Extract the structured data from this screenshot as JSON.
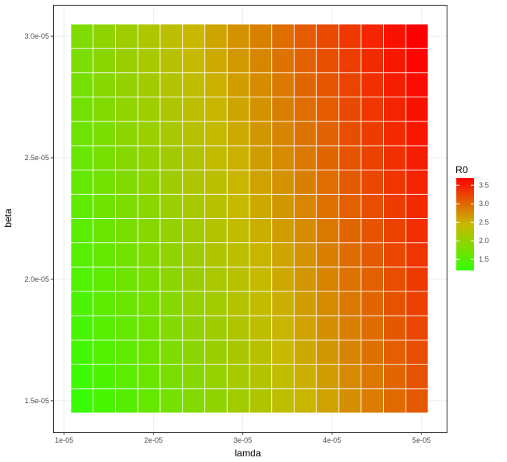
{
  "chart_data": {
    "type": "heatmap",
    "title": "",
    "xlabel": "lamda",
    "ylabel": "beta",
    "x": [
      1.2e-05,
      1.45e-05,
      1.7e-05,
      1.95e-05,
      2.2e-05,
      2.45e-05,
      2.7e-05,
      2.95e-05,
      3.2e-05,
      3.45e-05,
      3.7e-05,
      3.95e-05,
      4.2e-05,
      4.45e-05,
      4.7e-05,
      4.95e-05
    ],
    "y": [
      1.5e-05,
      1.6e-05,
      1.7e-05,
      1.8e-05,
      1.9e-05,
      2e-05,
      2.1e-05,
      2.2e-05,
      2.3e-05,
      2.4e-05,
      2.5e-05,
      2.6e-05,
      2.7e-05,
      2.8e-05,
      2.9e-05,
      3e-05
    ],
    "z_formula_note": "",
    "value_name": "R0",
    "value_range": [
      1.2,
      3.7
    ],
    "xlim": [
      1e-05,
      5.2e-05
    ],
    "ylim": [
      1.45e-05,
      3.1e-05
    ],
    "x_ticks": [
      {
        "value": 1e-05,
        "label": "1e-05"
      },
      {
        "value": 2e-05,
        "label": "2e-05"
      },
      {
        "value": 3e-05,
        "label": "3e-05"
      },
      {
        "value": 4e-05,
        "label": "4e-05"
      },
      {
        "value": 5e-05,
        "label": "5e-05"
      }
    ],
    "y_ticks": [
      {
        "value": 1.5e-05,
        "label": "1.5e-05"
      },
      {
        "value": 2e-05,
        "label": "2.0e-05"
      },
      {
        "value": 2.5e-05,
        "label": "2.5e-05"
      },
      {
        "value": 3e-05,
        "label": "3.0e-05"
      }
    ],
    "legend": {
      "title": "R0",
      "placement": "right",
      "labels": [
        "3.5",
        "3.0",
        "2.5",
        "2.0",
        "1.5"
      ],
      "label_values": [
        3.5,
        3.0,
        2.5,
        2.0,
        1.5
      ],
      "gradient_low": "#33ff00",
      "gradient_mid": "#c8b900",
      "gradient_high": "#ff0000"
    },
    "grid": true,
    "colors": {
      "panel_border": "#333333",
      "gridline": "#ebebeb",
      "cell_border": "#ffffff",
      "background": "#ffffff"
    }
  }
}
